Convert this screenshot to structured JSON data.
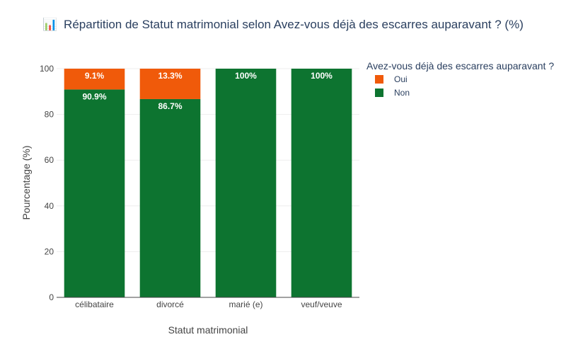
{
  "chart_data": {
    "type": "bar",
    "stacked": true,
    "title_icon": "📊",
    "title": "Répartition de Statut matrimonial selon Avez-vous déjà des escarres auparavant ? (%)",
    "xlabel": "Statut matrimonial",
    "ylabel": "Pourcentage (%)",
    "ylim": [
      0,
      100
    ],
    "yticks": [
      0,
      20,
      40,
      60,
      80,
      100
    ],
    "categories": [
      "célibataire",
      "divorcé",
      "marié (e)",
      "veuf/veuve"
    ],
    "legend": {
      "title": "Avez-vous déjà des escarres auparavant ?",
      "placement": "top-right"
    },
    "series": [
      {
        "name": "Non",
        "color": "#0d7430",
        "values": [
          90.9,
          86.7,
          100,
          100
        ],
        "labels": [
          "90.9%",
          "86.7%",
          "100%",
          "100%"
        ]
      },
      {
        "name": "Oui",
        "color": "#f05a0a",
        "values": [
          9.1,
          13.3,
          0,
          0
        ],
        "labels": [
          "9.1%",
          "13.3%",
          "",
          ""
        ]
      }
    ],
    "grid": true
  }
}
